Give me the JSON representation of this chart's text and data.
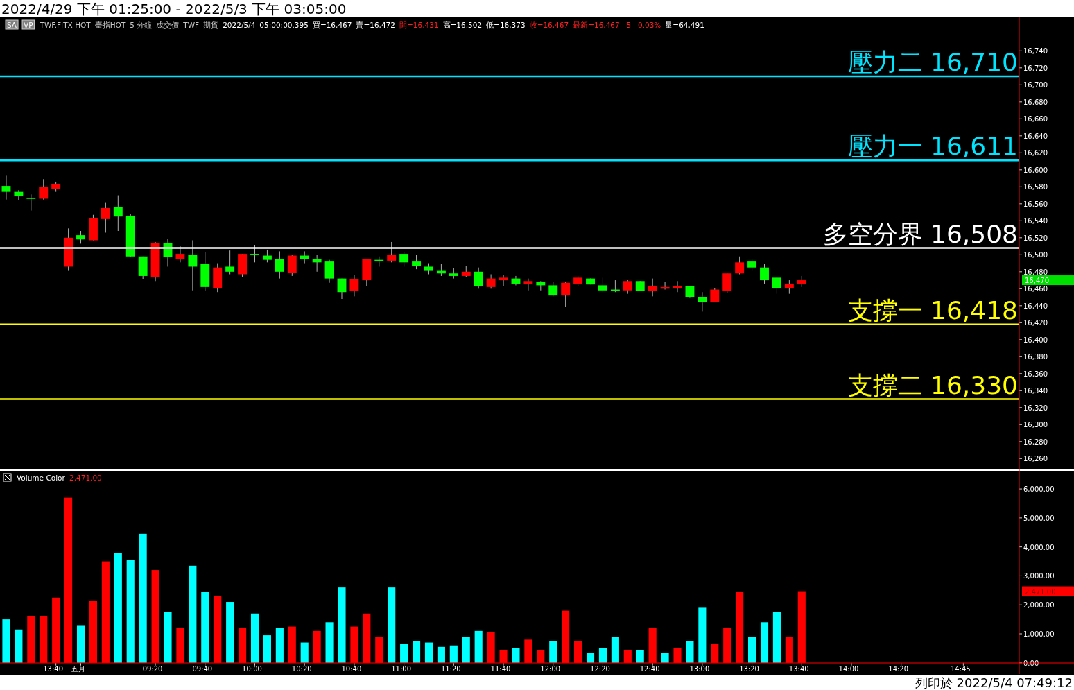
{
  "chart_data": [
    {
      "type": "candlestick",
      "title": "2022/4/29 下午 01:25:00 - 2022/5/3 下午 03:05:00",
      "annotations": [
        "SA",
        "VP",
        "TWF.FITX HOT",
        "臺指HOT",
        "5 分鐘",
        "成交價",
        "TWF",
        "期貨",
        "2022/5/4",
        "05:00:00.395",
        "買=16,467",
        "賣=16,472",
        "開=16,431",
        "高=16,502",
        "低=16,373",
        "收=16,467",
        "最新=16,467",
        "-5",
        "-0.03%",
        "量=64,491",
        "16,470"
      ],
      "categories": [
        null,
        null,
        null,
        null,
        "13:40",
        null,
        "五月",
        null,
        null,
        null,
        null,
        null,
        "09:20",
        null,
        null,
        null,
        "09:40",
        null,
        null,
        null,
        "10:00",
        null,
        null,
        null,
        "10:20",
        null,
        null,
        null,
        "10:40",
        null,
        null,
        null,
        "11:00",
        null,
        null,
        null,
        "11:20",
        null,
        null,
        null,
        "11:40",
        null,
        null,
        null,
        "12:00",
        null,
        null,
        null,
        "12:20",
        null,
        null,
        null,
        "12:40",
        null,
        null,
        null,
        "13:00",
        null,
        null,
        null,
        "13:20",
        null,
        null,
        null,
        "13:40",
        null,
        null,
        null,
        "14:00",
        null,
        null,
        null,
        "14:20",
        null,
        null,
        null,
        null,
        "14:45",
        null,
        null,
        null,
        null
      ],
      "ohlc": [
        [
          16581,
          16593,
          16565,
          16574
        ],
        [
          16574,
          16576,
          16564,
          16569
        ],
        [
          16567,
          16571,
          16552,
          16566
        ],
        [
          16566,
          16589,
          16565,
          16580
        ],
        [
          16577,
          16586,
          16574,
          16583
        ],
        [
          16486,
          16531,
          16481,
          16520
        ],
        [
          16523,
          16528,
          16513,
          16518
        ],
        [
          16517,
          16547,
          16517,
          16543
        ],
        [
          16542,
          16561,
          16526,
          16555
        ],
        [
          16556,
          16570,
          16528,
          16545
        ],
        [
          16546,
          16548,
          16497,
          16498
        ],
        [
          16498,
          16498,
          16471,
          16475
        ],
        [
          16474,
          16515,
          16469,
          16514
        ],
        [
          16514,
          16519,
          16486,
          16497
        ],
        [
          16495,
          16510,
          16491,
          16501
        ],
        [
          16500,
          16517,
          16458,
          16486
        ],
        [
          16489,
          16503,
          16457,
          16462
        ],
        [
          16461,
          16490,
          16456,
          16485
        ],
        [
          16486,
          16505,
          16477,
          16480
        ],
        [
          16477,
          16501,
          16474,
          16501
        ],
        [
          16501,
          16511,
          16491,
          16500
        ],
        [
          16499,
          16506,
          16491,
          16494
        ],
        [
          16495,
          16504,
          16472,
          16480
        ],
        [
          16479,
          16500,
          16475,
          16499
        ],
        [
          16499,
          16504,
          16490,
          16495
        ],
        [
          16495,
          16500,
          16480,
          16491
        ],
        [
          16492,
          16494,
          16467,
          16472
        ],
        [
          16472,
          16472,
          16448,
          16456
        ],
        [
          16457,
          16476,
          16451,
          16471
        ],
        [
          16470,
          16495,
          16463,
          16495
        ],
        [
          16494,
          16498,
          16486,
          16493
        ],
        [
          16493,
          16515,
          16491,
          16500
        ],
        [
          16501,
          16503,
          16486,
          16491
        ],
        [
          16492,
          16500,
          16483,
          16487
        ],
        [
          16486,
          16490,
          16477,
          16481
        ],
        [
          16481,
          16489,
          16475,
          16478
        ],
        [
          16478,
          16484,
          16472,
          16475
        ],
        [
          16475,
          16487,
          16474,
          16480
        ],
        [
          16480,
          16485,
          16460,
          16463
        ],
        [
          16462,
          16477,
          16460,
          16472
        ],
        [
          16470,
          16476,
          16463,
          16473
        ],
        [
          16472,
          16475,
          16464,
          16466
        ],
        [
          16466,
          16472,
          16458,
          16469
        ],
        [
          16468,
          16469,
          16458,
          16464
        ],
        [
          16464,
          16468,
          16451,
          16452
        ],
        [
          16452,
          16468,
          16439,
          16467
        ],
        [
          16466,
          16475,
          16463,
          16473
        ],
        [
          16472,
          16472,
          16465,
          16465
        ],
        [
          16464,
          16473,
          16456,
          16458
        ],
        [
          16459,
          16470,
          16456,
          16457
        ],
        [
          16458,
          16470,
          16454,
          16469
        ],
        [
          16469,
          16469,
          16457,
          16457
        ],
        [
          16457,
          16472,
          16451,
          16463
        ],
        [
          16460,
          16468,
          16459,
          16462
        ],
        [
          16461,
          16469,
          16456,
          16463
        ],
        [
          16463,
          16463,
          16449,
          16450
        ],
        [
          16450,
          16456,
          16433,
          16444
        ],
        [
          16444,
          16461,
          16444,
          16459
        ],
        [
          16457,
          16478,
          16455,
          16478
        ],
        [
          16478,
          16498,
          16477,
          16491
        ],
        [
          16492,
          16495,
          16481,
          16485
        ],
        [
          16485,
          16489,
          16466,
          16470
        ],
        [
          16473,
          16473,
          16454,
          16461
        ],
        [
          16461,
          16470,
          16454,
          16466
        ],
        [
          16466,
          16475,
          16462,
          16470
        ],
        null,
        null,
        null,
        null,
        null,
        null,
        null,
        null,
        null,
        null,
        null,
        null,
        null,
        null,
        null,
        null,
        null
      ],
      "colors": [
        "#00ff00",
        "#00ff00",
        "#00ff00",
        "#ff0000",
        "#ff0000",
        "#ff0000",
        "#00ff00",
        "#ff0000",
        "#ff0000",
        "#00ff00",
        "#00ff00",
        "#00ff00",
        "#ff0000",
        "#00ff00",
        "#ff0000",
        "#00ff00",
        "#00ff00",
        "#ff0000",
        "#00ff00",
        "#ff0000",
        "#00ff00",
        "#00ff00",
        "#00ff00",
        "#ff0000",
        "#00ff00",
        "#00ff00",
        "#00ff00",
        "#00ff00",
        "#ff0000",
        "#ff0000",
        "#00ff00",
        "#ff0000",
        "#00ff00",
        "#00ff00",
        "#00ff00",
        "#00ff00",
        "#00ff00",
        "#ff0000",
        "#00ff00",
        "#ff0000",
        "#ff0000",
        "#00ff00",
        "#ff0000",
        "#00ff00",
        "#00ff00",
        "#ff0000",
        "#ff0000",
        "#00ff00",
        "#00ff00",
        "#00ff00",
        "#ff0000",
        "#00ff00",
        "#ff0000",
        "#ff0000",
        "#ff0000",
        "#00ff00",
        "#00ff00",
        "#ff0000",
        "#ff0000",
        "#ff0000",
        "#00ff00",
        "#00ff00",
        "#00ff00",
        "#ff0000",
        "#ff0000",
        null,
        null,
        null,
        null,
        null,
        null,
        null,
        null,
        null,
        null,
        null,
        null,
        null,
        null,
        null,
        null,
        null
      ],
      "ylim": [
        16248,
        16777
      ],
      "yticks": [
        {
          "value": 16260,
          "label": "16,260"
        },
        {
          "value": 16280,
          "label": "16,280"
        },
        {
          "value": 16300,
          "label": "16,300"
        },
        {
          "value": 16320,
          "label": "16,320"
        },
        {
          "value": 16340,
          "label": "16,340"
        },
        {
          "value": 16360,
          "label": "16,360"
        },
        {
          "value": 16380,
          "label": "16,380"
        },
        {
          "value": 16400,
          "label": "16,400"
        },
        {
          "value": 16420,
          "label": "16,420"
        },
        {
          "value": 16440,
          "label": "16,440"
        },
        {
          "value": 16460,
          "label": "16,460"
        },
        {
          "value": 16480,
          "label": "16,480"
        },
        {
          "value": 16500,
          "label": "16,500"
        },
        {
          "value": 16520,
          "label": "16,520"
        },
        {
          "value": 16540,
          "label": "16,540"
        },
        {
          "value": 16560,
          "label": "16,560"
        },
        {
          "value": 16580,
          "label": "16,580"
        },
        {
          "value": 16600,
          "label": "16,600"
        },
        {
          "value": 16620,
          "label": "16,620"
        },
        {
          "value": 16640,
          "label": "16,640"
        },
        {
          "value": 16660,
          "label": "16,660"
        },
        {
          "value": 16680,
          "label": "16,680"
        },
        {
          "value": 16700,
          "label": "16,700"
        },
        {
          "value": 16720,
          "label": "16,720"
        },
        {
          "value": 16740,
          "label": "16,740"
        }
      ],
      "ref_lines": [
        {
          "axis": "y",
          "value": 16710,
          "label": "壓力二 16,710",
          "color": "#00e5ff"
        },
        {
          "axis": "y",
          "value": 16611,
          "label": "壓力一 16,611",
          "color": "#00e5ff"
        },
        {
          "axis": "y",
          "value": 16508,
          "label": "多空分界 16,508",
          "color": "#ffffff"
        },
        {
          "axis": "y",
          "value": 16418,
          "label": "支撐一 16,418",
          "color": "#ffff00"
        },
        {
          "axis": "y",
          "value": 16330,
          "label": "支撐二 16,330",
          "color": "#ffff00"
        }
      ],
      "tick_labels": "y"
    },
    {
      "type": "bar",
      "title": "Volume Color",
      "annotations": [
        "2,471.00",
        "2,471.00",
        "列印於 2022/5/4 07:49:12"
      ],
      "categories": [
        null,
        null,
        null,
        null,
        "13:40",
        null,
        "五月",
        null,
        null,
        null,
        null,
        null,
        "09:20",
        null,
        null,
        null,
        "09:40",
        null,
        null,
        null,
        "10:00",
        null,
        null,
        null,
        "10:20",
        null,
        null,
        null,
        "10:40",
        null,
        null,
        null,
        "11:00",
        null,
        null,
        null,
        "11:20",
        null,
        null,
        null,
        "11:40",
        null,
        null,
        null,
        "12:00",
        null,
        null,
        null,
        "12:20",
        null,
        null,
        null,
        "12:40",
        null,
        null,
        null,
        "13:00",
        null,
        null,
        null,
        "13:20",
        null,
        null,
        null,
        "13:40",
        null,
        null,
        null,
        "14:00",
        null,
        null,
        null,
        "14:20",
        null,
        null,
        null,
        null,
        "14:45",
        null,
        null,
        null,
        null
      ],
      "values": [
        1500,
        1150,
        1600,
        1600,
        2250,
        5700,
        1300,
        2150,
        3500,
        3800,
        3550,
        4450,
        3200,
        1750,
        1200,
        3350,
        2450,
        2300,
        2100,
        1200,
        1700,
        950,
        1200,
        1250,
        700,
        1100,
        1400,
        2600,
        1250,
        1700,
        900,
        2600,
        650,
        750,
        700,
        550,
        600,
        900,
        1100,
        1050,
        450,
        500,
        800,
        450,
        750,
        1800,
        750,
        350,
        500,
        900,
        450,
        450,
        1200,
        350,
        500,
        750,
        1900,
        650,
        1200,
        2450,
        900,
        1400,
        1750,
        900,
        2471,
        null,
        null,
        null,
        null,
        null,
        null,
        null,
        null,
        null,
        null,
        null,
        null,
        null,
        null,
        null,
        null,
        null
      ],
      "colors": [
        "#00ffff",
        "#00ffff",
        "#ff0000",
        "#ff0000",
        "#ff0000",
        "#ff0000",
        "#00ffff",
        "#ff0000",
        "#ff0000",
        "#00ffff",
        "#00ffff",
        "#00ffff",
        "#ff0000",
        "#00ffff",
        "#ff0000",
        "#00ffff",
        "#00ffff",
        "#ff0000",
        "#00ffff",
        "#ff0000",
        "#00ffff",
        "#00ffff",
        "#00ffff",
        "#ff0000",
        "#00ffff",
        "#ff0000",
        "#00ffff",
        "#00ffff",
        "#ff0000",
        "#ff0000",
        "#ff0000",
        "#00ffff",
        "#00ffff",
        "#00ffff",
        "#00ffff",
        "#00ffff",
        "#00ffff",
        "#00ffff",
        "#00ffff",
        "#ff0000",
        "#ff0000",
        "#00ffff",
        "#ff0000",
        "#ff0000",
        "#00ffff",
        "#ff0000",
        "#ff0000",
        "#00ffff",
        "#00ffff",
        "#00ffff",
        "#ff0000",
        "#00ffff",
        "#ff0000",
        "#00ffff",
        "#ff0000",
        "#00ffff",
        "#00ffff",
        "#ff0000",
        "#ff0000",
        "#ff0000",
        "#00ffff",
        "#00ffff",
        "#00ffff",
        "#ff0000",
        "#ff0000",
        null,
        null,
        null,
        null,
        null,
        null,
        null,
        null,
        null,
        null,
        null,
        null,
        null,
        null,
        null,
        null,
        null
      ],
      "ylim": [
        0,
        6600
      ],
      "yticks": [
        {
          "value": 0,
          "label": "0.00"
        },
        {
          "value": 1000,
          "label": "1,000.00"
        },
        {
          "value": 2000,
          "label": "2,000.00"
        },
        {
          "value": 3000,
          "label": "3,000.00"
        },
        {
          "value": 4000,
          "label": "4,000.00"
        },
        {
          "value": 5000,
          "label": "5,000.00"
        },
        {
          "value": 6000,
          "label": "6,000.00"
        }
      ]
    }
  ]
}
